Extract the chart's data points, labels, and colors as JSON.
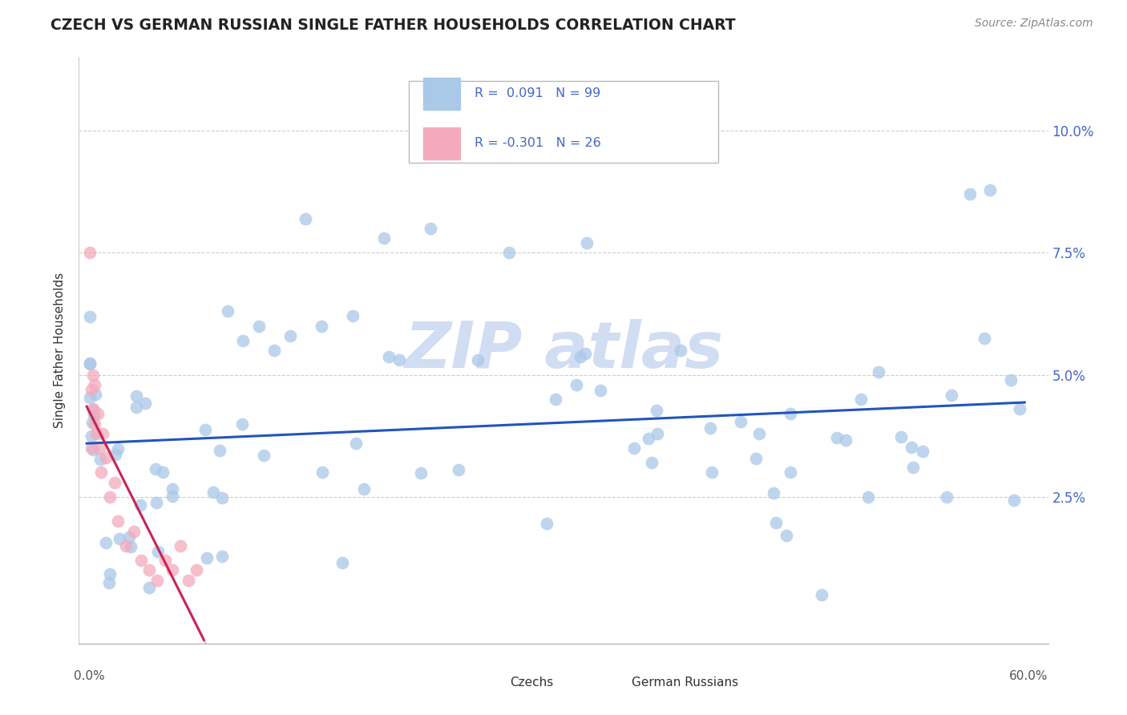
{
  "title": "CZECH VS GERMAN RUSSIAN SINGLE FATHER HOUSEHOLDS CORRELATION CHART",
  "source": "Source: ZipAtlas.com",
  "ylabel": "Single Father Households",
  "xlim": [
    -0.005,
    0.615
  ],
  "ylim": [
    -0.005,
    0.115
  ],
  "czechs_color": "#aac8e8",
  "german_russians_color": "#f4aabb",
  "trend_czech_color": "#2255bb",
  "trend_german_color": "#cc2255",
  "watermark_color": "#d0dff0",
  "ytick_vals": [
    0.025,
    0.05,
    0.075,
    0.1
  ],
  "ytick_labels": [
    "2.5%",
    "5.0%",
    "7.5%",
    "10.0%"
  ],
  "ytick_color": "#4466cc",
  "background_color": "#ffffff"
}
